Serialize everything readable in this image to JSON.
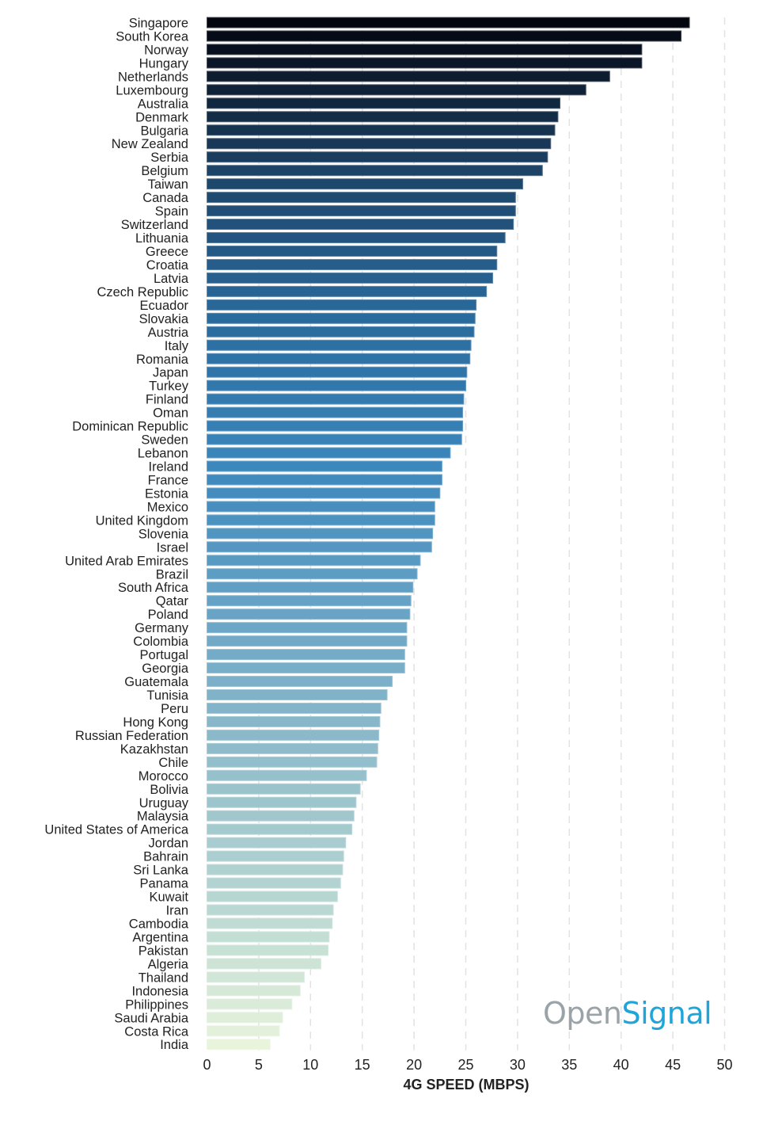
{
  "chart_data": {
    "type": "bar",
    "orientation": "horizontal",
    "title": "",
    "xlabel": "4G SPEED (MBPS)",
    "ylabel": "",
    "xlim": [
      0,
      50
    ],
    "xticks": [
      0,
      5,
      10,
      15,
      20,
      25,
      30,
      35,
      40,
      45,
      50
    ],
    "grid": true,
    "color_scale": [
      "#03050f",
      "#1d4366",
      "#2a6a9c",
      "#3a86bc",
      "#67a3c6",
      "#90bcca",
      "#b6d6d2",
      "#e8f4db"
    ],
    "categories": [
      "Singapore",
      "South Korea",
      "Norway",
      "Hungary",
      "Netherlands",
      "Luxembourg",
      "Australia",
      "Denmark",
      "Bulgaria",
      "New Zealand",
      "Serbia",
      "Belgium",
      "Taiwan",
      "Canada",
      "Spain",
      "Switzerland",
      "Lithuania",
      "Greece",
      "Croatia",
      "Latvia",
      "Czech Republic",
      "Ecuador",
      "Slovakia",
      "Austria",
      "Italy",
      "Romania",
      "Japan",
      "Turkey",
      "Finland",
      "Oman",
      "Dominican Republic",
      "Sweden",
      "Lebanon",
      "Ireland",
      "France",
      "Estonia",
      "Mexico",
      "United Kingdom",
      "Slovenia",
      "Israel",
      "United Arab Emirates",
      "Brazil",
      "South Africa",
      "Qatar",
      "Poland",
      "Germany",
      "Colombia",
      "Portugal",
      "Georgia",
      "Guatemala",
      "Tunisia",
      "Peru",
      "Hong Kong",
      "Russian Federation",
      "Kazakhstan",
      "Chile",
      "Morocco",
      "Bolivia",
      "Uruguay",
      "Malaysia",
      "United States of America",
      "Jordan",
      "Bahrain",
      "Sri Lanka",
      "Panama",
      "Kuwait",
      "Iran",
      "Cambodia",
      "Argentina",
      "Pakistan",
      "Algeria",
      "Thailand",
      "Indonesia",
      "Philippines",
      "Saudi Arabia",
      "Costa Rica",
      "India"
    ],
    "values": [
      46.6,
      45.8,
      42.0,
      42.0,
      38.9,
      36.6,
      34.1,
      33.9,
      33.6,
      33.2,
      32.9,
      32.4,
      30.5,
      29.8,
      29.8,
      29.6,
      28.8,
      28.0,
      28.0,
      27.6,
      27.0,
      26.0,
      25.9,
      25.8,
      25.5,
      25.4,
      25.1,
      25.0,
      24.8,
      24.7,
      24.7,
      24.6,
      23.5,
      22.7,
      22.7,
      22.5,
      22.0,
      22.0,
      21.8,
      21.7,
      20.6,
      20.3,
      19.9,
      19.7,
      19.6,
      19.3,
      19.3,
      19.1,
      19.1,
      17.9,
      17.4,
      16.8,
      16.7,
      16.6,
      16.5,
      16.4,
      15.4,
      14.8,
      14.4,
      14.2,
      14.0,
      13.4,
      13.2,
      13.1,
      12.9,
      12.6,
      12.2,
      12.1,
      11.8,
      11.7,
      11.0,
      9.4,
      9.0,
      8.2,
      7.3,
      7.0,
      6.1
    ]
  },
  "logo": {
    "part1": "Open",
    "part2": "Signal"
  }
}
